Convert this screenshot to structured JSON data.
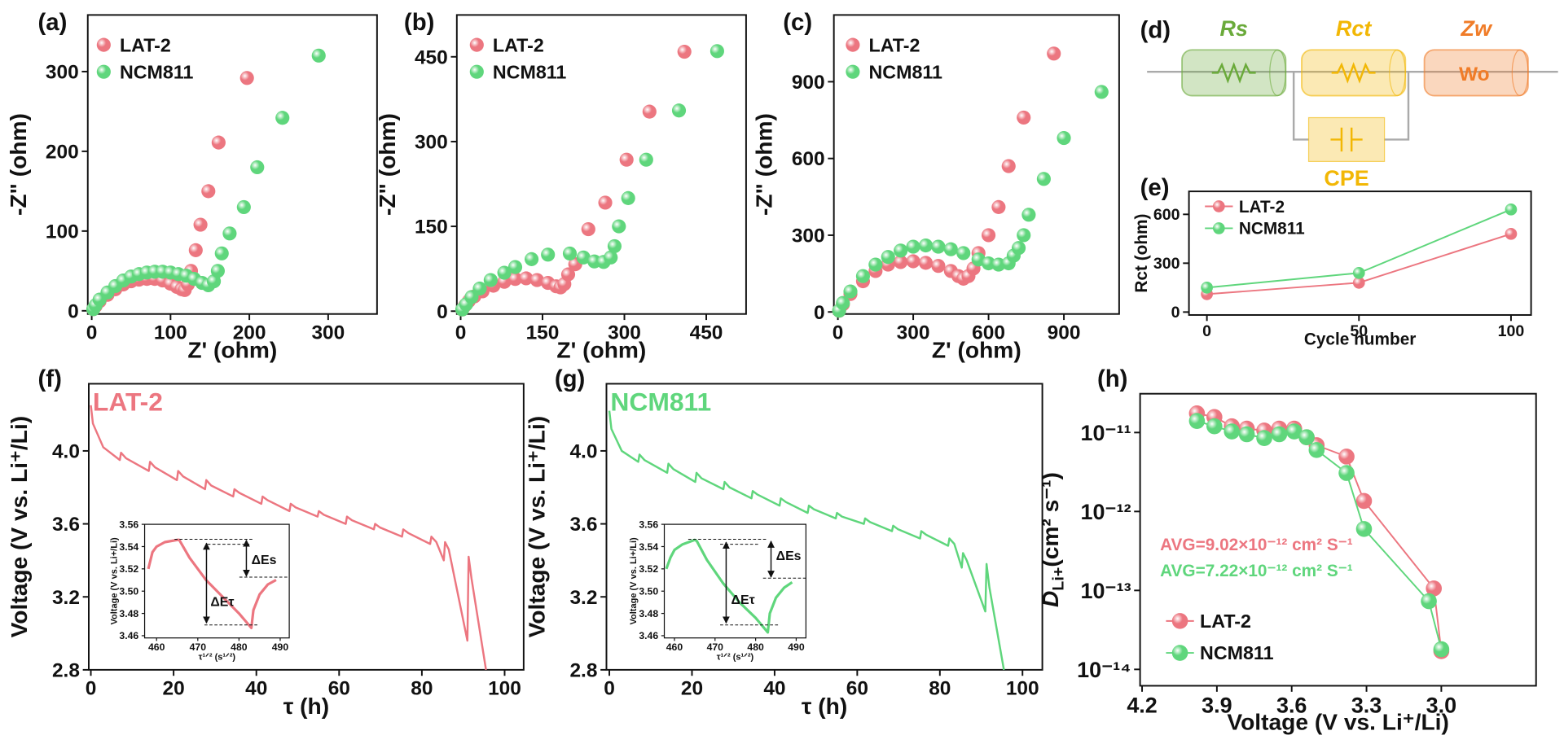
{
  "chart_data": [
    {
      "type": "scatter",
      "panel": "(a)",
      "xlabel": "Z' (ohm)",
      "ylabel": "-Z\" (ohm)",
      "xlim": [
        -5,
        362
      ],
      "ylim": [
        -4,
        371
      ],
      "xticks": [
        0,
        100,
        200,
        300
      ],
      "yticks": [
        0,
        100,
        200,
        300
      ],
      "series": [
        {
          "name": "LAT-2",
          "color": "#ec7680",
          "x": [
            2,
            5,
            10,
            20,
            30,
            40,
            50,
            60,
            70,
            80,
            90,
            100,
            108,
            114,
            118,
            122,
            126,
            132,
            138,
            148,
            161,
            197
          ],
          "values": [
            2,
            6,
            12,
            20,
            27,
            33,
            37,
            39,
            40,
            40,
            38,
            34,
            30,
            27,
            26,
            33,
            50,
            76,
            108,
            150,
            211,
            292
          ]
        },
        {
          "name": "NCM811",
          "color": "#5fd67c",
          "x": [
            2,
            5,
            10,
            20,
            30,
            40,
            50,
            60,
            70,
            80,
            90,
            100,
            110,
            120,
            130,
            140,
            148,
            155,
            160,
            165,
            175,
            193,
            210,
            242,
            288
          ],
          "values": [
            2,
            7,
            14,
            23,
            31,
            38,
            43,
            46,
            48,
            49,
            49,
            48,
            46,
            44,
            40,
            35,
            32,
            37,
            50,
            72,
            97,
            130,
            180,
            242,
            320
          ]
        }
      ]
    },
    {
      "type": "scatter",
      "panel": "(b)",
      "xlabel": "Z' (ohm)",
      "ylabel": "-Z\" (ohm)",
      "xlim": [
        -7,
        523
      ],
      "ylim": [
        -5,
        524
      ],
      "xticks": [
        0,
        150,
        300,
        450
      ],
      "yticks": [
        0,
        150,
        300,
        450
      ],
      "series": [
        {
          "name": "LAT-2",
          "color": "#ec7680",
          "x": [
            3,
            8,
            15,
            25,
            40,
            60,
            80,
            100,
            120,
            140,
            160,
            175,
            183,
            190,
            197,
            210,
            234,
            265,
            304,
            346,
            410
          ],
          "values": [
            3,
            10,
            18,
            26,
            35,
            45,
            52,
            57,
            58,
            55,
            50,
            44,
            42,
            48,
            65,
            83,
            145,
            192,
            268,
            353,
            459
          ]
        },
        {
          "name": "NCM811",
          "color": "#5fd67c",
          "x": [
            3,
            10,
            20,
            35,
            55,
            80,
            100,
            130,
            160,
            200,
            225,
            245,
            262,
            275,
            282,
            290,
            307,
            340,
            400,
            470
          ],
          "values": [
            3,
            12,
            25,
            40,
            55,
            68,
            78,
            92,
            100,
            102,
            95,
            88,
            87,
            95,
            115,
            150,
            200,
            268,
            355,
            460
          ]
        }
      ]
    },
    {
      "type": "scatter",
      "panel": "(c)",
      "xlabel": "Z' (ohm)",
      "ylabel": "-Z\" (ohm)",
      "xlim": [
        -16,
        1120
      ],
      "ylim": [
        -8,
        1161
      ],
      "xticks": [
        0,
        300,
        600,
        900
      ],
      "yticks": [
        0,
        300,
        600,
        900
      ],
      "series": [
        {
          "name": "LAT-2",
          "color": "#ec7680",
          "x": [
            5,
            20,
            50,
            100,
            150,
            200,
            250,
            300,
            350,
            400,
            450,
            480,
            500,
            520,
            540,
            560,
            600,
            640,
            680,
            740,
            860
          ],
          "values": [
            5,
            30,
            70,
            120,
            160,
            185,
            195,
            198,
            192,
            180,
            160,
            140,
            130,
            140,
            170,
            230,
            300,
            410,
            570,
            760,
            1010
          ]
        },
        {
          "name": "NCM811",
          "color": "#5fd67c",
          "x": [
            5,
            20,
            50,
            100,
            150,
            200,
            250,
            300,
            350,
            400,
            450,
            500,
            560,
            600,
            640,
            680,
            700,
            720,
            740,
            760,
            820,
            900,
            1050
          ],
          "values": [
            5,
            35,
            80,
            140,
            185,
            215,
            240,
            255,
            260,
            255,
            245,
            230,
            205,
            190,
            185,
            190,
            220,
            250,
            300,
            380,
            520,
            680,
            860
          ]
        }
      ]
    },
    {
      "type": "line",
      "markers": true,
      "panel": "(e)",
      "xlabel": "Cycle number",
      "ylabel": "Rct (ohm)",
      "xlim": [
        -5.9,
        106.6
      ],
      "ylim": [
        -18,
        741
      ],
      "xticks": [
        0,
        50,
        100
      ],
      "yticks": [
        0,
        300,
        600
      ],
      "x": [
        0,
        50,
        100
      ],
      "series": [
        {
          "name": "LAT-2",
          "color": "#ec7680",
          "values": [
            110,
            180,
            480
          ]
        },
        {
          "name": "NCM811",
          "color": "#5fd67c",
          "values": [
            150,
            240,
            630
          ]
        }
      ]
    },
    {
      "type": "line",
      "panel": "(f)",
      "xlabel": "τ (h)",
      "ylabel": "Voltage (V vs. Li⁺/Li)",
      "xlim": [
        -0.5,
        104.6
      ],
      "ylim": [
        2.8,
        4.368
      ],
      "xticks": [
        0,
        20,
        40,
        60,
        80,
        100
      ],
      "yticks": [
        2.8,
        3.2,
        3.6,
        {
          "value": 4,
          "label": "4.0"
        }
      ],
      "color": "#ec7680",
      "annotations": [
        {
          "text": "LAT-2",
          "color": "#ec7680"
        }
      ],
      "x": [
        0,
        0.5,
        3,
        7,
        7.3,
        8.5,
        14,
        14.3,
        15.5,
        20.8,
        21.1,
        22.3,
        27.6,
        27.9,
        29.1,
        34.4,
        34.7,
        35.9,
        41.2,
        41.5,
        42.7,
        48,
        48.3,
        49.5,
        54.8,
        55.1,
        56.3,
        61.6,
        61.9,
        63.1,
        68.4,
        68.7,
        69.9,
        75.2,
        75.5,
        76.7,
        82,
        82.3,
        83.5,
        85.3,
        85.6,
        86.5,
        91,
        91.3,
        92,
        95.5
      ],
      "values": [
        4.25,
        4.15,
        4.02,
        3.95,
        3.99,
        3.96,
        3.89,
        3.94,
        3.91,
        3.84,
        3.89,
        3.86,
        3.79,
        3.84,
        3.81,
        3.75,
        3.79,
        3.77,
        3.71,
        3.75,
        3.73,
        3.67,
        3.71,
        3.69,
        3.64,
        3.67,
        3.65,
        3.6,
        3.64,
        3.62,
        3.57,
        3.6,
        3.58,
        3.53,
        3.57,
        3.55,
        3.49,
        3.53,
        3.5,
        3.4,
        3.5,
        3.46,
        2.96,
        3.42,
        3.3,
        2.8
      ]
    },
    {
      "type": "line",
      "inset": true,
      "xlabel": "τ¹ᐟ² (s¹ᐟ²)",
      "ylabel": "Voltage (V vs. Li+/Li)",
      "xlim": [
        457.1,
        492.2
      ],
      "ylim": [
        3.458,
        3.56
      ],
      "xticks": [
        460,
        470,
        480,
        490
      ],
      "yticks": [
        3.46,
        3.48,
        {
          "value": 3.5,
          "label": "3.50"
        },
        3.52,
        3.54,
        3.56
      ],
      "color": "#ec7680",
      "annotations": [
        {
          "text": "ΔEs"
        },
        {
          "text": "ΔEτ"
        }
      ],
      "x": [
        458,
        459,
        460,
        462,
        465,
        465.5,
        468,
        472,
        476,
        480,
        483,
        483.5,
        485,
        487,
        489
      ],
      "values": [
        3.52,
        3.535,
        3.54,
        3.544,
        3.546,
        3.546,
        3.53,
        3.51,
        3.495,
        3.48,
        3.467,
        3.483,
        3.497,
        3.506,
        3.51
      ]
    },
    {
      "type": "line",
      "panel": "(g)",
      "xlabel": "τ (h)",
      "ylabel": "Voltage (V vs. Li⁺/Li)",
      "xlim": [
        -0.7,
        104.8
      ],
      "ylim": [
        2.8,
        4.368
      ],
      "xticks": [
        0,
        20,
        40,
        60,
        80,
        100
      ],
      "yticks": [
        2.8,
        3.2,
        3.6,
        {
          "value": 4,
          "label": "4.0"
        }
      ],
      "color": "#5fd67c",
      "annotations": [
        {
          "text": "NCM811",
          "color": "#5fd67c"
        }
      ],
      "x": [
        0,
        0.5,
        3,
        7,
        7.3,
        8.5,
        14,
        14.3,
        15.5,
        20.8,
        21.1,
        22.3,
        27.6,
        27.9,
        29.1,
        34.4,
        34.7,
        35.9,
        41.2,
        41.5,
        42.7,
        48,
        48.3,
        49.5,
        54.8,
        55.1,
        56.3,
        61.6,
        61.9,
        63.1,
        68.4,
        68.7,
        69.9,
        75.2,
        75.5,
        76.7,
        82,
        82.3,
        83.5,
        85.3,
        85.6,
        86.5,
        91,
        91.3,
        92,
        95.5
      ],
      "values": [
        4.22,
        4.12,
        4.0,
        3.94,
        3.98,
        3.95,
        3.88,
        3.93,
        3.9,
        3.83,
        3.88,
        3.85,
        3.79,
        3.83,
        3.8,
        3.74,
        3.78,
        3.76,
        3.7,
        3.74,
        3.72,
        3.66,
        3.7,
        3.68,
        3.63,
        3.66,
        3.64,
        3.6,
        3.63,
        3.61,
        3.56,
        3.59,
        3.57,
        3.52,
        3.56,
        3.54,
        3.48,
        3.52,
        3.49,
        3.36,
        3.44,
        3.4,
        3.12,
        3.38,
        3.25,
        2.8
      ]
    },
    {
      "type": "line",
      "inset": true,
      "xlabel": "τ¹ᐟ² (s¹ᐟ²)",
      "ylabel": "Voltage (V vs. Li+/Li)",
      "xlim": [
        457.5,
        492.4
      ],
      "ylim": [
        3.458,
        3.56
      ],
      "xticks": [
        460,
        470,
        480,
        490
      ],
      "yticks": [
        3.46,
        3.48,
        {
          "value": 3.5,
          "label": "3.50"
        },
        3.52,
        3.54,
        3.56
      ],
      "color": "#5fd67c",
      "annotations": [
        {
          "text": "ΔEs"
        },
        {
          "text": "ΔEτ"
        }
      ],
      "x": [
        458,
        459,
        460,
        462,
        465,
        465.5,
        468,
        472,
        476,
        480,
        483,
        483.5,
        485,
        487,
        489
      ],
      "values": [
        3.52,
        3.53,
        3.537,
        3.542,
        3.546,
        3.545,
        3.528,
        3.507,
        3.49,
        3.476,
        3.463,
        3.48,
        3.494,
        3.503,
        3.508
      ]
    },
    {
      "type": "line",
      "markers": true,
      "log": true,
      "panel": "(h)",
      "xlabel": "Voltage (V vs. Li⁺/Li)",
      "ylabel": {
        "main": "D",
        "sub": "Li+",
        "unit": "(cm² s⁻¹)"
      },
      "xlim": [
        4.208,
        2.62
      ],
      "ylim": [
        6.2e-15,
        3.1e-11
      ],
      "xticks": [
        4.2,
        3.9,
        3.6,
        3.3,
        {
          "value": 3,
          "label": "3.0"
        }
      ],
      "yticks": [
        {
          "value": 1e-14,
          "label": "10⁻¹⁴"
        },
        {
          "value": 1e-13,
          "label": "10⁻¹³"
        },
        {
          "value": 1e-12,
          "label": "10⁻¹²"
        },
        {
          "value": 1e-11,
          "label": "10⁻¹¹"
        }
      ],
      "annotations": [
        {
          "text": "AVG=9.02×10⁻¹² cm² S⁻¹",
          "color": "#ec7680"
        },
        {
          "text": "AVG=7.22×10⁻¹² cm² S⁻¹",
          "color": "#5fd67c"
        }
      ],
      "series": [
        {
          "name": "LAT-2",
          "color": "#ec7680",
          "x": [
            3.98,
            3.91,
            3.84,
            3.78,
            3.71,
            3.65,
            3.59,
            3.54,
            3.5,
            3.38,
            3.31,
            3.03,
            3.0
          ],
          "values": [
            1.75e-11,
            1.57e-11,
            1.2e-11,
            1.12e-11,
            1.06e-11,
            1.12e-11,
            1.12e-11,
            8.7e-12,
            6.9e-12,
            4.96e-12,
            1.36e-12,
            1.06e-13,
            1.7e-14
          ]
        },
        {
          "name": "NCM811",
          "color": "#5fd67c",
          "x": [
            3.98,
            3.91,
            3.84,
            3.78,
            3.71,
            3.65,
            3.59,
            3.54,
            3.5,
            3.38,
            3.31,
            3.05,
            3.0
          ],
          "values": [
            1.4e-11,
            1.2e-11,
            1.03e-11,
            9.5e-12,
            8.5e-12,
            9.5e-12,
            1.03e-11,
            8.7e-12,
            6e-12,
            3.07e-12,
            6e-13,
            7.3e-14,
            1.8e-14
          ]
        }
      ]
    }
  ],
  "diagram": {
    "panel": "(d)",
    "elements": [
      {
        "label": "Rs",
        "color": "#6aaa3a"
      },
      {
        "label": "Rct",
        "color": "#f2b705"
      },
      {
        "label": "Zw",
        "color": "#f07c28",
        "inner": "Wo"
      }
    ],
    "cpe": {
      "label": "CPE",
      "color": "#f2b705"
    }
  }
}
